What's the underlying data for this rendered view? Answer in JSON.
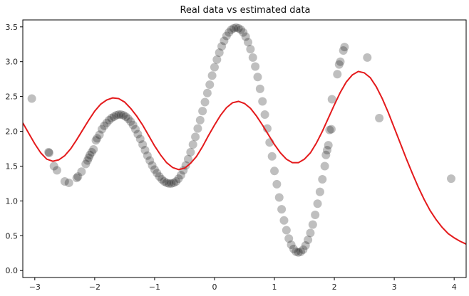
{
  "chart_data": {
    "type": "scatter",
    "title": "Real data vs estimated data",
    "xlabel": "",
    "ylabel": "",
    "xlim": [
      -3.2,
      4.2
    ],
    "ylim": [
      -0.1,
      3.6
    ],
    "x_ticks": [
      "−3",
      "−2",
      "−1",
      "0",
      "1",
      "2",
      "3",
      "4"
    ],
    "x_tick_values": [
      -3,
      -2,
      -1,
      0,
      1,
      2,
      3,
      4
    ],
    "y_ticks": [
      "0.0",
      "0.5",
      "1.0",
      "1.5",
      "2.0",
      "2.5",
      "3.0",
      "3.5"
    ],
    "y_tick_values": [
      0,
      0.5,
      1,
      1.5,
      2,
      2.5,
      3,
      3.5
    ],
    "grid": false,
    "series": [
      {
        "kind": "scatter",
        "color": "#000000",
        "opacity": 0.25,
        "points": [
          [
            -3.05,
            2.47
          ],
          [
            -2.77,
            1.7
          ],
          [
            -2.76,
            1.69
          ],
          [
            -2.68,
            1.5
          ],
          [
            -2.63,
            1.44
          ],
          [
            -2.5,
            1.28
          ],
          [
            -2.43,
            1.26
          ],
          [
            -2.3,
            1.33
          ],
          [
            -2.28,
            1.35
          ],
          [
            -2.22,
            1.42
          ],
          [
            -2.15,
            1.53
          ],
          [
            -2.12,
            1.58
          ],
          [
            -2.1,
            1.62
          ],
          [
            -2.08,
            1.66
          ],
          [
            -2.05,
            1.7
          ],
          [
            -2.02,
            1.74
          ],
          [
            -1.98,
            1.87
          ],
          [
            -1.96,
            1.9
          ],
          [
            -1.92,
            1.95
          ],
          [
            -1.88,
            2.03
          ],
          [
            -1.84,
            2.08
          ],
          [
            -1.8,
            2.12
          ],
          [
            -1.76,
            2.16
          ],
          [
            -1.72,
            2.19
          ],
          [
            -1.68,
            2.21
          ],
          [
            -1.64,
            2.23
          ],
          [
            -1.6,
            2.24
          ],
          [
            -1.56,
            2.24
          ],
          [
            -1.52,
            2.23
          ],
          [
            -1.48,
            2.21
          ],
          [
            -1.44,
            2.18
          ],
          [
            -1.4,
            2.14
          ],
          [
            -1.36,
            2.09
          ],
          [
            -1.32,
            2.03
          ],
          [
            -1.28,
            1.96
          ],
          [
            -1.24,
            1.89
          ],
          [
            -1.2,
            1.81
          ],
          [
            -1.16,
            1.73
          ],
          [
            -1.12,
            1.65
          ],
          [
            -1.08,
            1.58
          ],
          [
            -1.04,
            1.51
          ],
          [
            -1.0,
            1.45
          ],
          [
            -0.96,
            1.4
          ],
          [
            -0.92,
            1.35
          ],
          [
            -0.88,
            1.31
          ],
          [
            -0.84,
            1.28
          ],
          [
            -0.8,
            1.26
          ],
          [
            -0.76,
            1.25
          ],
          [
            -0.72,
            1.25
          ],
          [
            -0.68,
            1.26
          ],
          [
            -0.64,
            1.28
          ],
          [
            -0.6,
            1.32
          ],
          [
            -0.56,
            1.37
          ],
          [
            -0.52,
            1.44
          ],
          [
            -0.48,
            1.51
          ],
          [
            -0.44,
            1.6
          ],
          [
            -0.4,
            1.7
          ],
          [
            -0.36,
            1.81
          ],
          [
            -0.32,
            1.92
          ],
          [
            -0.28,
            2.04
          ],
          [
            -0.24,
            2.16
          ],
          [
            -0.2,
            2.29
          ],
          [
            -0.16,
            2.42
          ],
          [
            -0.12,
            2.55
          ],
          [
            -0.08,
            2.67
          ],
          [
            -0.04,
            2.8
          ],
          [
            0.0,
            2.92
          ],
          [
            0.04,
            3.03
          ],
          [
            0.08,
            3.13
          ],
          [
            0.12,
            3.22
          ],
          [
            0.16,
            3.3
          ],
          [
            0.2,
            3.37
          ],
          [
            0.24,
            3.42
          ],
          [
            0.28,
            3.46
          ],
          [
            0.32,
            3.48
          ],
          [
            0.36,
            3.49
          ],
          [
            0.4,
            3.48
          ],
          [
            0.44,
            3.46
          ],
          [
            0.48,
            3.42
          ],
          [
            0.52,
            3.36
          ],
          [
            0.56,
            3.28
          ],
          [
            0.6,
            3.18
          ],
          [
            0.64,
            3.06
          ],
          [
            0.68,
            2.93
          ],
          [
            0.72,
            2.78
          ],
          [
            0.76,
            2.61
          ],
          [
            0.8,
            2.43
          ],
          [
            0.84,
            2.24
          ],
          [
            0.88,
            2.04
          ],
          [
            0.92,
            1.84
          ],
          [
            0.96,
            1.64
          ],
          [
            1.0,
            1.43
          ],
          [
            1.04,
            1.24
          ],
          [
            1.08,
            1.05
          ],
          [
            1.12,
            0.88
          ],
          [
            1.16,
            0.72
          ],
          [
            1.2,
            0.58
          ],
          [
            1.24,
            0.46
          ],
          [
            1.28,
            0.37
          ],
          [
            1.32,
            0.31
          ],
          [
            1.36,
            0.27
          ],
          [
            1.4,
            0.26
          ],
          [
            1.44,
            0.27
          ],
          [
            1.48,
            0.3
          ],
          [
            1.52,
            0.36
          ],
          [
            1.56,
            0.44
          ],
          [
            1.6,
            0.54
          ],
          [
            1.64,
            0.66
          ],
          [
            1.68,
            0.8
          ],
          [
            1.72,
            0.96
          ],
          [
            1.76,
            1.13
          ],
          [
            1.8,
            1.31
          ],
          [
            1.84,
            1.5
          ],
          [
            1.86,
            1.66
          ],
          [
            1.88,
            1.73
          ],
          [
            1.9,
            1.8
          ],
          [
            1.92,
            2.02
          ],
          [
            1.95,
            2.03
          ],
          [
            1.96,
            2.46
          ],
          [
            2.05,
            2.82
          ],
          [
            2.08,
            2.96
          ],
          [
            2.1,
            3.0
          ],
          [
            2.15,
            3.16
          ],
          [
            2.17,
            3.21
          ],
          [
            2.55,
            3.06
          ],
          [
            2.75,
            2.19
          ],
          [
            3.95,
            1.32
          ]
        ]
      },
      {
        "kind": "line",
        "color": "#e41a1c",
        "points": [
          [
            -3.2,
            2.12
          ],
          [
            -3.1,
            1.97
          ],
          [
            -3.0,
            1.82
          ],
          [
            -2.9,
            1.69
          ],
          [
            -2.8,
            1.6
          ],
          [
            -2.7,
            1.57
          ],
          [
            -2.6,
            1.59
          ],
          [
            -2.5,
            1.65
          ],
          [
            -2.4,
            1.75
          ],
          [
            -2.3,
            1.88
          ],
          [
            -2.2,
            2.02
          ],
          [
            -2.1,
            2.16
          ],
          [
            -2.0,
            2.29
          ],
          [
            -1.9,
            2.39
          ],
          [
            -1.8,
            2.45
          ],
          [
            -1.7,
            2.48
          ],
          [
            -1.6,
            2.47
          ],
          [
            -1.5,
            2.42
          ],
          [
            -1.4,
            2.33
          ],
          [
            -1.3,
            2.22
          ],
          [
            -1.2,
            2.09
          ],
          [
            -1.1,
            1.94
          ],
          [
            -1.0,
            1.79
          ],
          [
            -0.9,
            1.66
          ],
          [
            -0.8,
            1.55
          ],
          [
            -0.7,
            1.48
          ],
          [
            -0.6,
            1.45
          ],
          [
            -0.5,
            1.47
          ],
          [
            -0.4,
            1.54
          ],
          [
            -0.3,
            1.64
          ],
          [
            -0.2,
            1.78
          ],
          [
            -0.1,
            1.94
          ],
          [
            0.0,
            2.09
          ],
          [
            0.1,
            2.23
          ],
          [
            0.2,
            2.34
          ],
          [
            0.3,
            2.41
          ],
          [
            0.4,
            2.43
          ],
          [
            0.5,
            2.4
          ],
          [
            0.6,
            2.33
          ],
          [
            0.7,
            2.22
          ],
          [
            0.8,
            2.09
          ],
          [
            0.9,
            1.95
          ],
          [
            1.0,
            1.81
          ],
          [
            1.1,
            1.69
          ],
          [
            1.2,
            1.6
          ],
          [
            1.3,
            1.55
          ],
          [
            1.4,
            1.55
          ],
          [
            1.5,
            1.6
          ],
          [
            1.6,
            1.69
          ],
          [
            1.7,
            1.83
          ],
          [
            1.8,
            2.0
          ],
          [
            1.9,
            2.19
          ],
          [
            2.0,
            2.38
          ],
          [
            2.1,
            2.56
          ],
          [
            2.2,
            2.71
          ],
          [
            2.3,
            2.81
          ],
          [
            2.4,
            2.86
          ],
          [
            2.5,
            2.84
          ],
          [
            2.6,
            2.77
          ],
          [
            2.7,
            2.64
          ],
          [
            2.8,
            2.47
          ],
          [
            2.9,
            2.27
          ],
          [
            3.0,
            2.05
          ],
          [
            3.1,
            1.83
          ],
          [
            3.2,
            1.61
          ],
          [
            3.3,
            1.4
          ],
          [
            3.4,
            1.2
          ],
          [
            3.5,
            1.02
          ],
          [
            3.6,
            0.86
          ],
          [
            3.7,
            0.73
          ],
          [
            3.8,
            0.62
          ],
          [
            3.9,
            0.53
          ],
          [
            4.0,
            0.47
          ],
          [
            4.1,
            0.42
          ],
          [
            4.2,
            0.38
          ]
        ]
      }
    ]
  }
}
